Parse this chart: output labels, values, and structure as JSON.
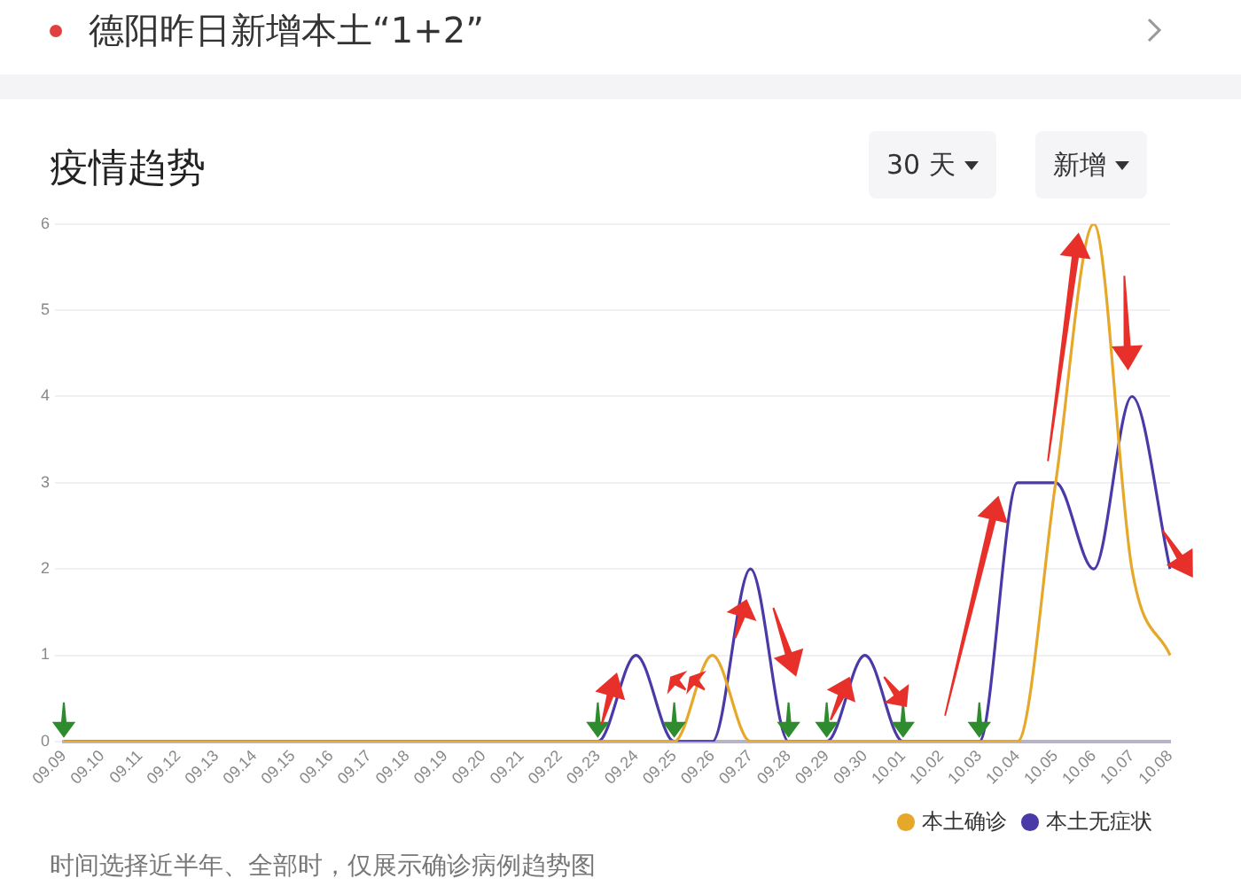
{
  "chart_data": {
    "type": "line",
    "title": "疫情趋势",
    "annotations": [
      "德阳昨日新增本土“1+2”",
      "30 天",
      "新增",
      "时间选择近半年、全部时，仅展示确诊病例趋势图"
    ],
    "categories": [
      "09.09",
      "09.10",
      "09.11",
      "09.12",
      "09.13",
      "09.14",
      "09.15",
      "09.16",
      "09.17",
      "09.18",
      "09.19",
      "09.20",
      "09.21",
      "09.22",
      "09.23",
      "09.24",
      "09.25",
      "09.26",
      "09.27",
      "09.28",
      "09.29",
      "09.30",
      "10.01",
      "10.02",
      "10.03",
      "10.04",
      "10.05",
      "10.06",
      "10.07",
      "10.08"
    ],
    "series": [
      {
        "name": "本土确诊",
        "color": "#e6a82a",
        "values": [
          0,
          0,
          0,
          0,
          0,
          0,
          0,
          0,
          0,
          0,
          0,
          0,
          0,
          0,
          0,
          0,
          0,
          1,
          0,
          0,
          0,
          0,
          0,
          0,
          0,
          0,
          3,
          6,
          2,
          1
        ]
      },
      {
        "name": "本土无症状",
        "color": "#4a3aa8",
        "values": [
          0,
          0,
          0,
          0,
          0,
          0,
          0,
          0,
          0,
          0,
          0,
          0,
          0,
          0,
          0,
          1,
          0,
          0,
          2,
          0,
          0,
          1,
          0,
          0,
          0,
          3,
          3,
          2,
          4,
          2
        ]
      }
    ],
    "ylim": [
      0,
      6
    ],
    "yticks": [
      0,
      1,
      2,
      3,
      4,
      5,
      6
    ],
    "grid": "y",
    "legend": "bottom",
    "marker": "none",
    "line_style": "solid"
  }
}
